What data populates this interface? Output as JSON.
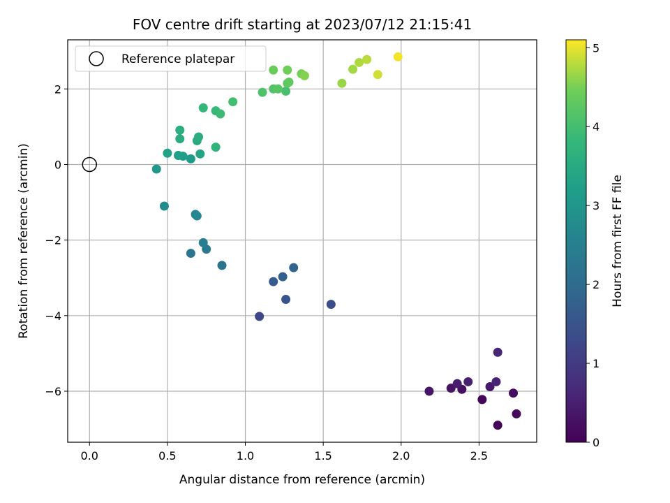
{
  "chart_data": {
    "type": "scatter",
    "title": "FOV centre drift starting at 2023/07/12 21:15:41",
    "xlabel": "Angular distance from reference (arcmin)",
    "ylabel": "Rotation from reference (arcmin)",
    "xlim": [
      -0.14,
      2.87
    ],
    "ylim": [
      -7.35,
      3.3
    ],
    "xticks": [
      0.0,
      0.5,
      1.0,
      1.5,
      2.0,
      2.5
    ],
    "xtick_labels": [
      "0.0",
      "0.5",
      "1.0",
      "1.5",
      "2.0",
      "2.5"
    ],
    "yticks": [
      -6,
      -4,
      -2,
      0,
      2
    ],
    "ytick_labels": [
      "−6",
      "−4",
      "−2",
      "0",
      "2"
    ],
    "grid": true,
    "legend": {
      "position": "top-left",
      "entries": [
        "Reference platepar"
      ]
    },
    "reference_point": {
      "x": 0.0,
      "y": 0.0
    },
    "colorbar": {
      "label": "Hours from first FF file",
      "range": [
        0,
        5.1
      ],
      "ticks": [
        0,
        1,
        2,
        3,
        4,
        5
      ],
      "tick_labels": [
        "0",
        "1",
        "2",
        "3",
        "4",
        "5"
      ],
      "colormap": "viridis"
    },
    "points": [
      {
        "x": 2.62,
        "y": -6.9,
        "hours": 0.05
      },
      {
        "x": 2.52,
        "y": -6.22,
        "hours": 0.1
      },
      {
        "x": 2.74,
        "y": -6.6,
        "hours": 0.15
      },
      {
        "x": 2.72,
        "y": -6.05,
        "hours": 0.2
      },
      {
        "x": 2.39,
        "y": -5.95,
        "hours": 0.25
      },
      {
        "x": 2.32,
        "y": -5.92,
        "hours": 0.3
      },
      {
        "x": 2.18,
        "y": -6.0,
        "hours": 0.35
      },
      {
        "x": 2.57,
        "y": -5.88,
        "hours": 0.4
      },
      {
        "x": 2.36,
        "y": -5.8,
        "hours": 0.45
      },
      {
        "x": 2.43,
        "y": -5.75,
        "hours": 0.5
      },
      {
        "x": 2.61,
        "y": -5.75,
        "hours": 0.55
      },
      {
        "x": 2.62,
        "y": -4.97,
        "hours": 0.6
      },
      {
        "x": 1.09,
        "y": -4.02,
        "hours": 1.25
      },
      {
        "x": 1.55,
        "y": -3.7,
        "hours": 1.35
      },
      {
        "x": 1.26,
        "y": -3.57,
        "hours": 1.5
      },
      {
        "x": 1.18,
        "y": -3.1,
        "hours": 1.65
      },
      {
        "x": 1.24,
        "y": -2.97,
        "hours": 1.75
      },
      {
        "x": 1.31,
        "y": -2.73,
        "hours": 1.85
      },
      {
        "x": 0.85,
        "y": -2.67,
        "hours": 2.15
      },
      {
        "x": 0.65,
        "y": -2.35,
        "hours": 2.25
      },
      {
        "x": 0.75,
        "y": -2.24,
        "hours": 2.35
      },
      {
        "x": 0.73,
        "y": -2.07,
        "hours": 2.45
      },
      {
        "x": 0.68,
        "y": -1.32,
        "hours": 2.6
      },
      {
        "x": 0.69,
        "y": -1.36,
        "hours": 2.65
      },
      {
        "x": 0.48,
        "y": -1.1,
        "hours": 2.75
      },
      {
        "x": 0.43,
        "y": -0.12,
        "hours": 3.05
      },
      {
        "x": 0.65,
        "y": 0.15,
        "hours": 3.15
      },
      {
        "x": 0.6,
        "y": 0.22,
        "hours": 3.2
      },
      {
        "x": 0.57,
        "y": 0.24,
        "hours": 3.25
      },
      {
        "x": 0.5,
        "y": 0.3,
        "hours": 3.3
      },
      {
        "x": 0.71,
        "y": 0.28,
        "hours": 3.35
      },
      {
        "x": 0.69,
        "y": 0.63,
        "hours": 3.5
      },
      {
        "x": 0.7,
        "y": 0.73,
        "hours": 3.55
      },
      {
        "x": 0.58,
        "y": 0.68,
        "hours": 3.55
      },
      {
        "x": 0.58,
        "y": 0.91,
        "hours": 3.6
      },
      {
        "x": 0.81,
        "y": 0.46,
        "hours": 3.7
      },
      {
        "x": 0.73,
        "y": 1.5,
        "hours": 3.8
      },
      {
        "x": 0.81,
        "y": 1.42,
        "hours": 3.85
      },
      {
        "x": 0.84,
        "y": 1.34,
        "hours": 3.9
      },
      {
        "x": 0.92,
        "y": 1.66,
        "hours": 4.0
      },
      {
        "x": 1.26,
        "y": 1.94,
        "hours": 4.05
      },
      {
        "x": 1.11,
        "y": 1.91,
        "hours": 4.1
      },
      {
        "x": 1.18,
        "y": 2.0,
        "hours": 4.15
      },
      {
        "x": 1.21,
        "y": 2.0,
        "hours": 4.2
      },
      {
        "x": 1.27,
        "y": 2.15,
        "hours": 4.3
      },
      {
        "x": 1.28,
        "y": 2.18,
        "hours": 4.3
      },
      {
        "x": 1.18,
        "y": 2.5,
        "hours": 4.4
      },
      {
        "x": 1.27,
        "y": 2.5,
        "hours": 4.45
      },
      {
        "x": 1.36,
        "y": 2.4,
        "hours": 4.5
      },
      {
        "x": 1.38,
        "y": 2.35,
        "hours": 4.55
      },
      {
        "x": 1.62,
        "y": 2.15,
        "hours": 4.65
      },
      {
        "x": 1.69,
        "y": 2.52,
        "hours": 4.7
      },
      {
        "x": 1.73,
        "y": 2.7,
        "hours": 4.75
      },
      {
        "x": 1.78,
        "y": 2.78,
        "hours": 4.8
      },
      {
        "x": 1.85,
        "y": 2.38,
        "hours": 4.9
      },
      {
        "x": 1.98,
        "y": 2.85,
        "hours": 5.05
      }
    ]
  }
}
